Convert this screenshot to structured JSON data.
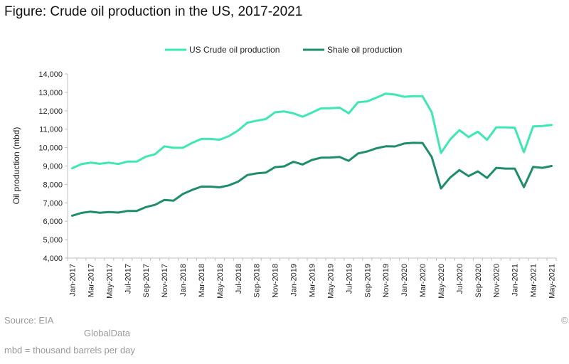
{
  "figure_title": "Figure: Crude oil production in the US, 2017-2021",
  "source": "Source: EIA",
  "brand": "GlobalData",
  "copyright_mark": "©",
  "unit_note": "mbd = thousand barrels per day",
  "colors": {
    "us_crude": "#3EE8B5",
    "shale": "#1F8C6E",
    "axis": "#bfbfbf",
    "text": "#222222",
    "note": "#9a9a9a"
  },
  "chart_data": {
    "type": "line",
    "title": "",
    "xlabel": "",
    "ylabel": "Oil production (mbd)",
    "ylim": [
      4000,
      14000
    ],
    "y_ticks": [
      "4,000",
      "5,000",
      "6,000",
      "7,000",
      "8,000",
      "9,000",
      "10,000",
      "11,000",
      "12,000",
      "13,000",
      "14,000"
    ],
    "legend_position": "top-center",
    "grid": false,
    "x_tick_labels": [
      "Jan-2017",
      "Mar-2017",
      "May-2017",
      "Jul-2017",
      "Sep-2017",
      "Nov-2017",
      "Jan-2018",
      "Mar-2018",
      "May-2018",
      "Jul-2018",
      "Sep-2018",
      "Nov-2018",
      "Jan-2019",
      "Mar-2019",
      "May-2019",
      "Jul-2019",
      "Sep-2019",
      "Nov-2019",
      "Jan-2020",
      "Mar-2020",
      "May-2020",
      "Jul-2020",
      "Sep-2020",
      "Nov-2020",
      "Jan-2021",
      "Mar-2021",
      "May-2021"
    ],
    "x": [
      "Jan-2017",
      "Feb-2017",
      "Mar-2017",
      "Apr-2017",
      "May-2017",
      "Jun-2017",
      "Jul-2017",
      "Aug-2017",
      "Sep-2017",
      "Oct-2017",
      "Nov-2017",
      "Dec-2017",
      "Jan-2018",
      "Feb-2018",
      "Mar-2018",
      "Apr-2018",
      "May-2018",
      "Jun-2018",
      "Jul-2018",
      "Aug-2018",
      "Sep-2018",
      "Oct-2018",
      "Nov-2018",
      "Dec-2018",
      "Jan-2019",
      "Feb-2019",
      "Mar-2019",
      "Apr-2019",
      "May-2019",
      "Jun-2019",
      "Jul-2019",
      "Aug-2019",
      "Sep-2019",
      "Oct-2019",
      "Nov-2019",
      "Dec-2019",
      "Jan-2020",
      "Feb-2020",
      "Mar-2020",
      "Apr-2020",
      "May-2020",
      "Jun-2020",
      "Jul-2020",
      "Aug-2020",
      "Sep-2020",
      "Oct-2020",
      "Nov-2020",
      "Dec-2020",
      "Jan-2021",
      "Feb-2021",
      "Mar-2021",
      "Apr-2021",
      "May-2021"
    ],
    "series": [
      {
        "name": "US Crude oil production",
        "values": [
          8880,
          9100,
          9180,
          9120,
          9180,
          9110,
          9240,
          9240,
          9510,
          9640,
          10070,
          9990,
          9990,
          10250,
          10470,
          10470,
          10430,
          10620,
          10930,
          11350,
          11460,
          11550,
          11920,
          11960,
          11860,
          11680,
          11900,
          12130,
          12140,
          12170,
          11860,
          12460,
          12510,
          12710,
          12930,
          12880,
          12760,
          12790,
          12790,
          11920,
          9710,
          10440,
          10950,
          10570,
          10870,
          10420,
          11100,
          11100,
          11080,
          9750,
          11150,
          11170,
          11230
        ]
      },
      {
        "name": "Shale oil production",
        "values": [
          6300,
          6450,
          6520,
          6460,
          6500,
          6470,
          6560,
          6560,
          6770,
          6890,
          7160,
          7120,
          7480,
          7700,
          7880,
          7880,
          7840,
          7950,
          8150,
          8510,
          8600,
          8640,
          8940,
          8980,
          9230,
          9080,
          9330,
          9450,
          9460,
          9490,
          9280,
          9680,
          9790,
          9960,
          10070,
          10060,
          10220,
          10260,
          10250,
          9490,
          7780,
          8370,
          8780,
          8450,
          8710,
          8350,
          8900,
          8860,
          8860,
          7850,
          8950,
          8900,
          9000
        ]
      }
    ]
  }
}
